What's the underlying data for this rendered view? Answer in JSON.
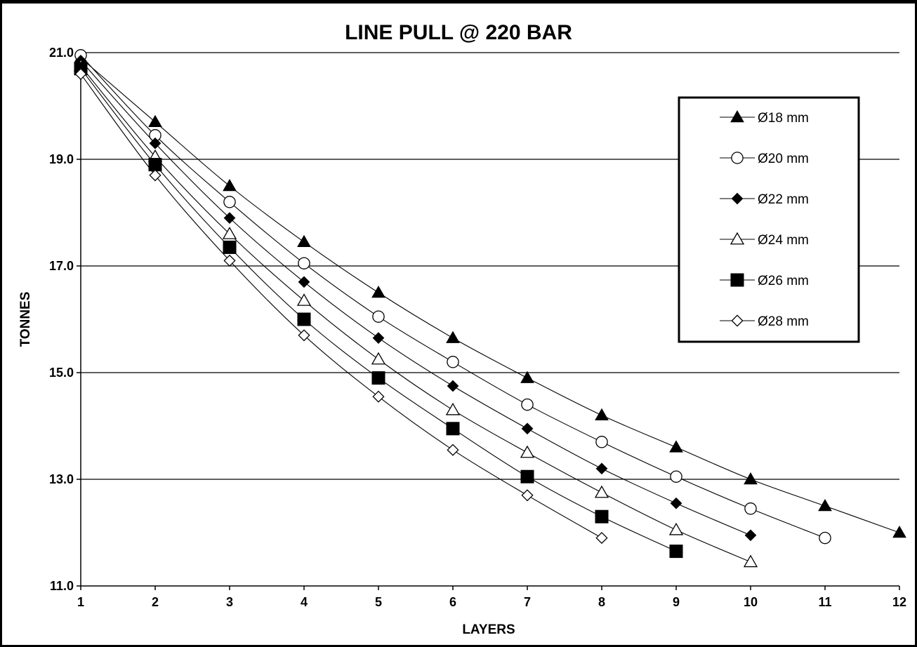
{
  "chart_data": {
    "type": "line",
    "title": "LINE PULL @ 220 BAR",
    "xlabel": "LAYERS",
    "ylabel": "TONNES",
    "xlim": [
      1,
      12
    ],
    "ylim": [
      11.0,
      21.0
    ],
    "x_ticks": [
      "1",
      "2",
      "3",
      "4",
      "5",
      "6",
      "7",
      "8",
      "9",
      "10",
      "11",
      "12"
    ],
    "y_ticks": [
      "11.0",
      "13.0",
      "15.0",
      "17.0",
      "19.0",
      "21.0"
    ],
    "y_gridlines": [
      13.0,
      15.0,
      17.0,
      19.0,
      21.0
    ],
    "grid": "horizontal",
    "legend_position": "upper-right",
    "series": [
      {
        "name": "Ø18 mm",
        "marker": "triangle-filled",
        "x": [
          1,
          2,
          3,
          4,
          5,
          6,
          7,
          8,
          9,
          10,
          11,
          12
        ],
        "values": [
          20.9,
          19.7,
          18.5,
          17.45,
          16.5,
          15.65,
          14.9,
          14.2,
          13.6,
          13.0,
          12.5,
          12.0
        ]
      },
      {
        "name": "Ø20 mm",
        "marker": "circle-open",
        "x": [
          1,
          2,
          3,
          4,
          5,
          6,
          7,
          8,
          9,
          10,
          11
        ],
        "values": [
          20.95,
          19.45,
          18.2,
          17.05,
          16.05,
          15.2,
          14.4,
          13.7,
          13.05,
          12.45,
          11.9
        ]
      },
      {
        "name": "Ø22 mm",
        "marker": "diamond-filled",
        "x": [
          1,
          2,
          3,
          4,
          5,
          6,
          7,
          8,
          9,
          10
        ],
        "values": [
          20.85,
          19.3,
          17.9,
          16.7,
          15.65,
          14.75,
          13.95,
          13.2,
          12.55,
          11.95
        ]
      },
      {
        "name": "Ø24 mm",
        "marker": "triangle-open",
        "x": [
          1,
          2,
          3,
          4,
          5,
          6,
          7,
          8,
          9,
          10
        ],
        "values": [
          20.75,
          19.05,
          17.6,
          16.35,
          15.25,
          14.3,
          13.5,
          12.75,
          12.05,
          11.45
        ]
      },
      {
        "name": "Ø26 mm",
        "marker": "square-filled",
        "x": [
          1,
          2,
          3,
          4,
          5,
          6,
          7,
          8,
          9
        ],
        "values": [
          20.7,
          18.9,
          17.35,
          16.0,
          14.9,
          13.95,
          13.05,
          12.3,
          11.65
        ]
      },
      {
        "name": "Ø28 mm",
        "marker": "diamond-open",
        "x": [
          1,
          2,
          3,
          4,
          5,
          6,
          7,
          8
        ],
        "values": [
          20.6,
          18.7,
          17.1,
          15.7,
          14.55,
          13.55,
          12.7,
          11.9
        ]
      }
    ]
  }
}
